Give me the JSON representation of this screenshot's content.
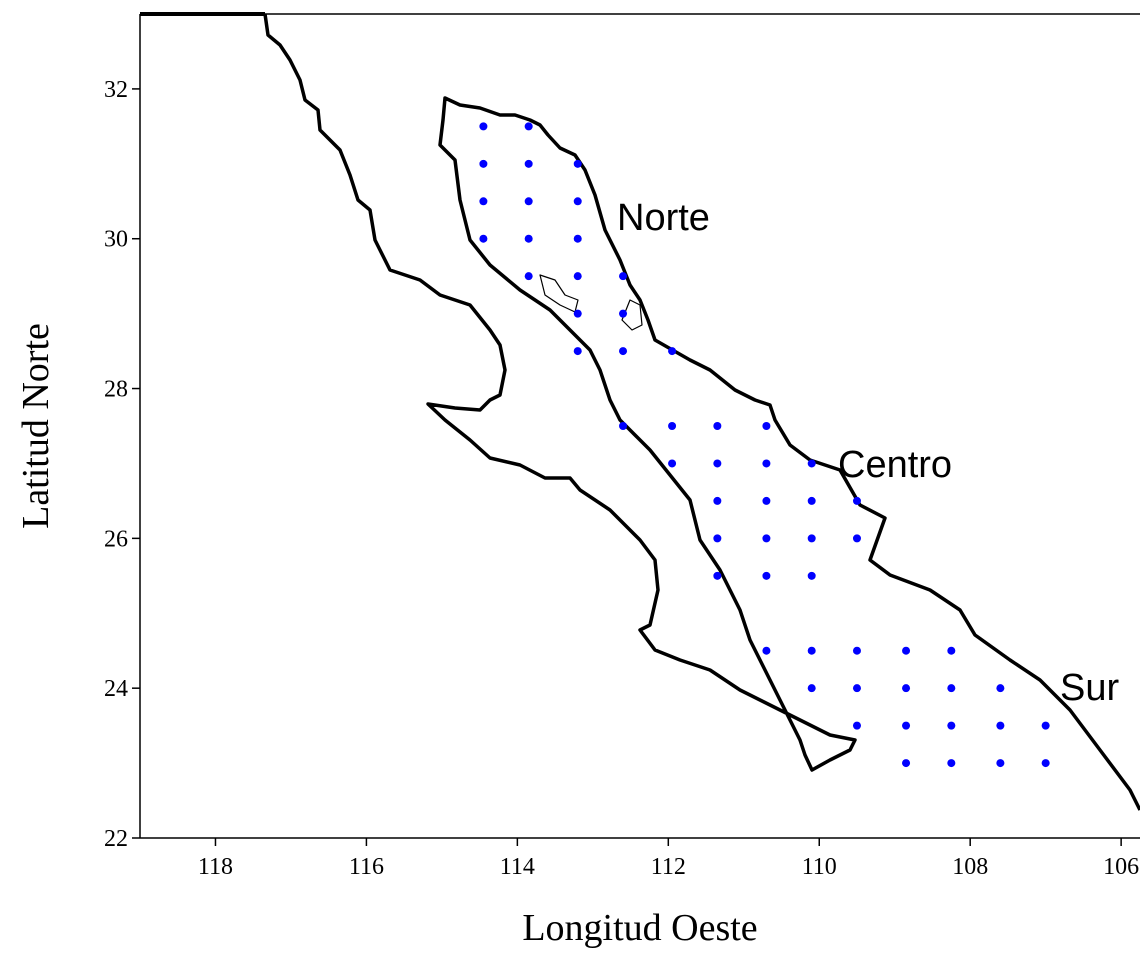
{
  "chart_data": {
    "type": "scatter",
    "xlabel": "Longitud Oeste",
    "ylabel": "Latitud Norte",
    "xlim": [
      119,
      105.75
    ],
    "xticks": [
      118,
      116,
      114,
      112,
      110,
      108,
      106
    ],
    "ylim": [
      22,
      33
    ],
    "yticks": [
      22,
      24,
      26,
      28,
      30,
      32
    ],
    "annotations": [
      "Norte",
      "Centro",
      "Sur"
    ],
    "series": [
      {
        "color": "#0000ff",
        "x": [
          114.45,
          113.85,
          114.45,
          113.85,
          113.2,
          114.45,
          113.85,
          113.2,
          114.45,
          113.85,
          113.2,
          113.85,
          113.2,
          112.6,
          113.2,
          112.6,
          113.2,
          112.6,
          111.95,
          112.6,
          111.95,
          111.35,
          110.7,
          111.95,
          111.35,
          110.7,
          110.1,
          111.35,
          110.7,
          110.1,
          109.5,
          111.35,
          110.7,
          110.1,
          109.5,
          111.35,
          110.7,
          110.1,
          110.7,
          110.1,
          109.5,
          108.85,
          108.25,
          110.1,
          109.5,
          108.85,
          108.25,
          107.6,
          109.5,
          108.85,
          108.25,
          107.6,
          107.0,
          108.85,
          108.25,
          107.6,
          107.0
        ],
        "y": [
          31.5,
          31.5,
          31.0,
          31.0,
          31.0,
          30.5,
          30.5,
          30.5,
          30.0,
          30.0,
          30.0,
          29.5,
          29.5,
          29.5,
          29.0,
          29.0,
          28.5,
          28.5,
          28.5,
          27.5,
          27.5,
          27.5,
          27.5,
          27.0,
          27.0,
          27.0,
          27.0,
          26.5,
          26.5,
          26.5,
          26.5,
          26.0,
          26.0,
          26.0,
          26.0,
          25.5,
          25.5,
          25.5,
          24.5,
          24.5,
          24.5,
          24.5,
          24.5,
          24.0,
          24.0,
          24.0,
          24.0,
          24.0,
          23.5,
          23.5,
          23.5,
          23.5,
          23.5,
          23.0,
          23.0,
          23.0,
          23.0
        ]
      }
    ]
  }
}
